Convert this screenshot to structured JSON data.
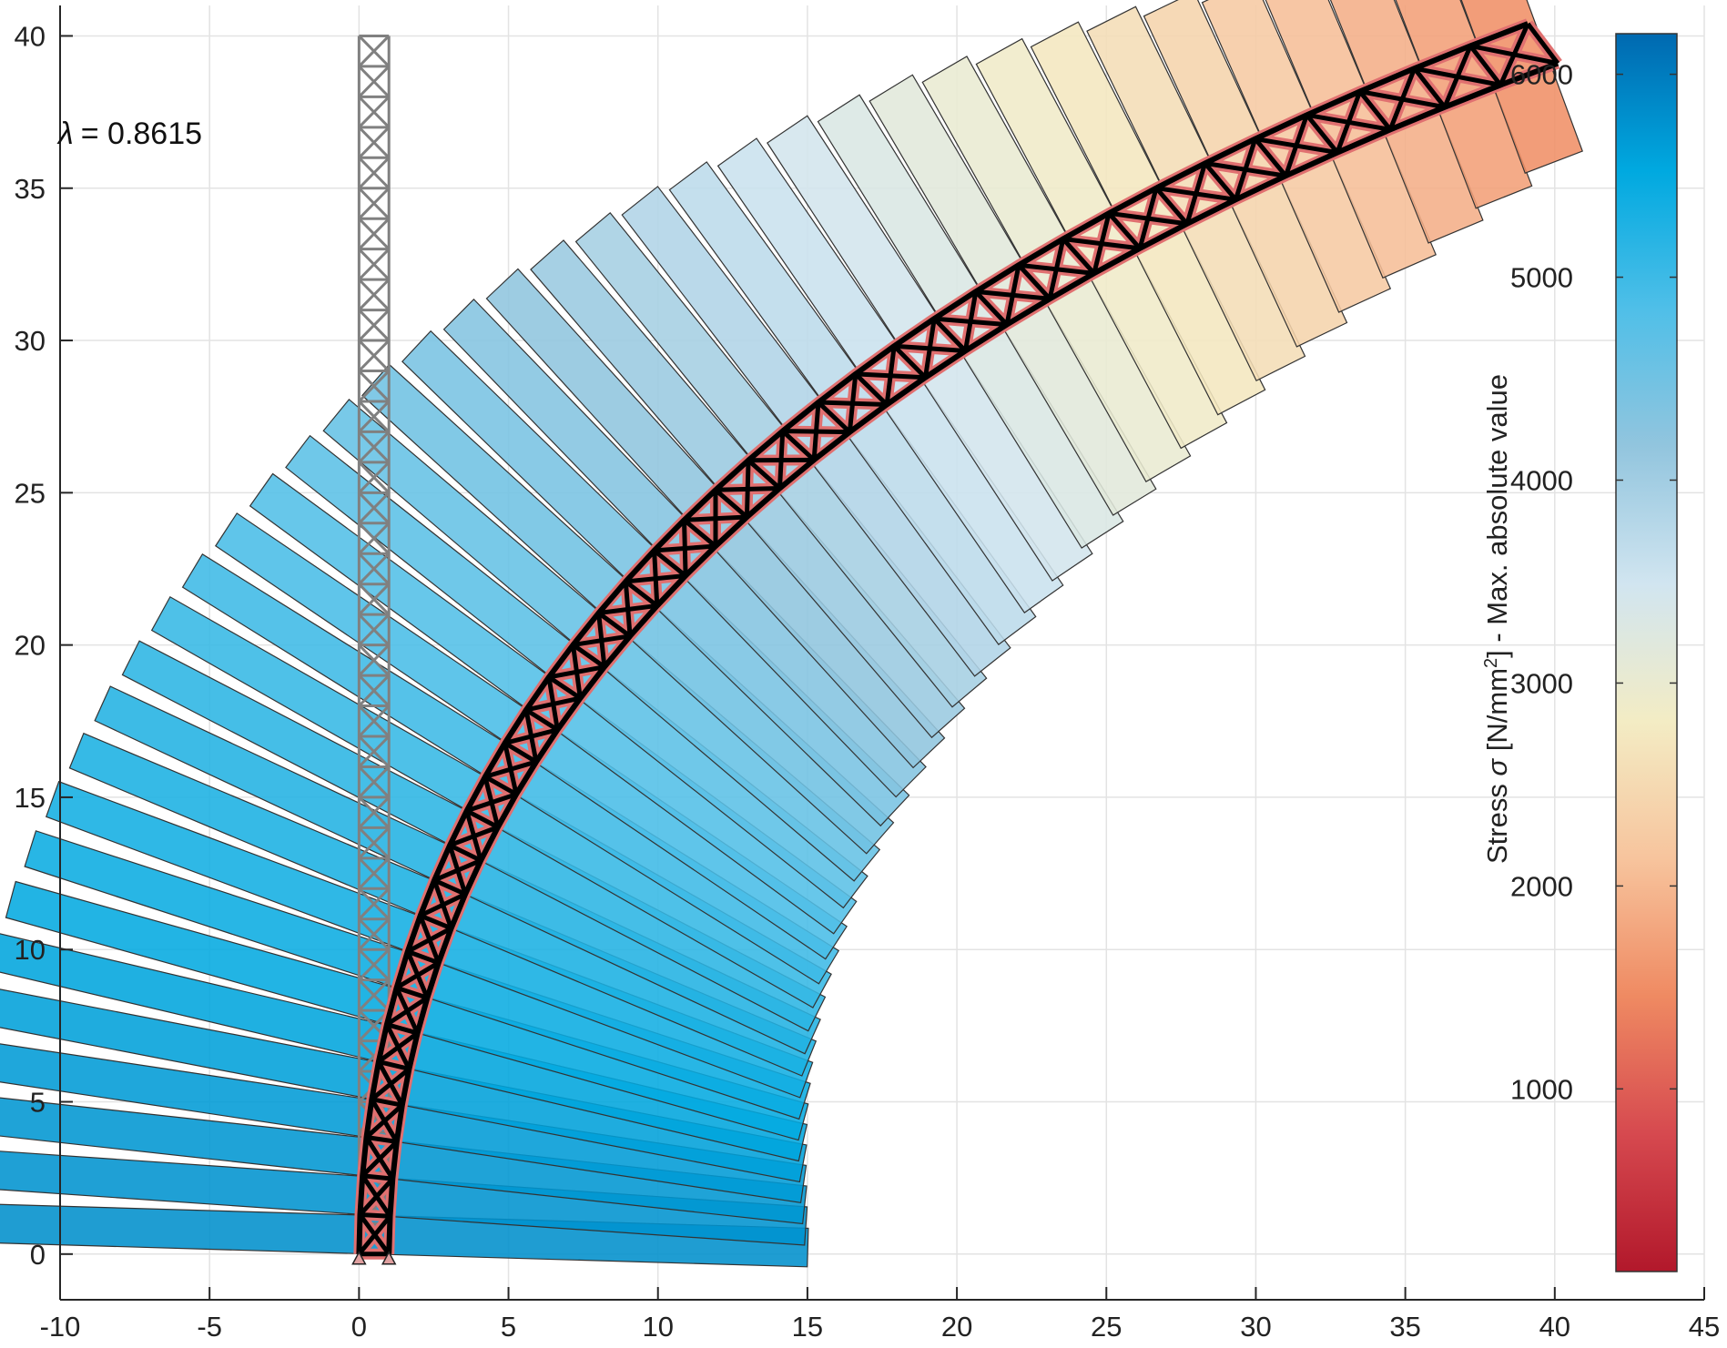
{
  "chart_data": {
    "type": "scatter",
    "title": "",
    "xlabel": "",
    "ylabel": "",
    "xlim": [
      -10,
      45
    ],
    "ylim": [
      -1.5,
      41
    ],
    "xticks": [
      -10,
      -5,
      0,
      5,
      10,
      15,
      20,
      25,
      30,
      35,
      40,
      45
    ],
    "yticks": [
      0,
      5,
      10,
      15,
      20,
      25,
      30,
      35,
      40
    ],
    "xtick_labels": [
      "-10",
      "-5",
      "0",
      "5",
      "10",
      "15",
      "20",
      "25",
      "30",
      "35",
      "40",
      "45"
    ],
    "ytick_labels": [
      "0",
      "5",
      "10",
      "15",
      "20",
      "25",
      "30",
      "35",
      "40"
    ],
    "grid": true,
    "annotation": {
      "symbol": "λ",
      "text": "=  0.8615"
    },
    "undeformed_truss": {
      "x_left": 0,
      "x_right": 1,
      "y_bottom": 0,
      "y_top": 40,
      "panels": 40,
      "color": "#808080"
    },
    "deformed_truss": {
      "base_left": [
        0,
        0
      ],
      "base_right": [
        1,
        0
      ],
      "tip_left": [
        39.1,
        40.4
      ],
      "tip_right": [
        40.1,
        39.1
      ],
      "panels": 40,
      "color": "#000000",
      "member_stress_color": "#e07070"
    },
    "stress_bars": {
      "count": 40,
      "scale_mm_per_unit": 400,
      "stress_values": [
        5800,
        5760,
        5720,
        5670,
        5620,
        5560,
        5500,
        5440,
        5370,
        5300,
        5230,
        5150,
        5070,
        4990,
        4900,
        4810,
        4720,
        4620,
        4520,
        4420,
        4310,
        4200,
        4080,
        3960,
        3840,
        3710,
        3580,
        3450,
        3310,
        3170,
        3020,
        2870,
        2720,
        2560,
        2400,
        2230,
        2060,
        1880,
        1700,
        1510
      ]
    },
    "colorbar": {
      "label": "Stress σ [N/mm²]  -  Max. absolute value",
      "label_parts": {
        "pre": "Stress ",
        "sym": "σ",
        "mid": " [N/mm",
        "sup": "2",
        "post": "]  -  Max. absolute value"
      },
      "range": [
        100,
        6200
      ],
      "ticks": [
        1000,
        2000,
        3000,
        4000,
        5000,
        6000
      ],
      "tick_labels": [
        "1000",
        "2000",
        "3000",
        "4000",
        "5000",
        "6000"
      ],
      "colormap": [
        "#b2182b",
        "#d6494f",
        "#ef8a62",
        "#f7c49d",
        "#f3ecc4",
        "#d1e5f0",
        "#92c5de",
        "#4fbfe8",
        "#00a9e0",
        "#0069b0"
      ]
    }
  }
}
